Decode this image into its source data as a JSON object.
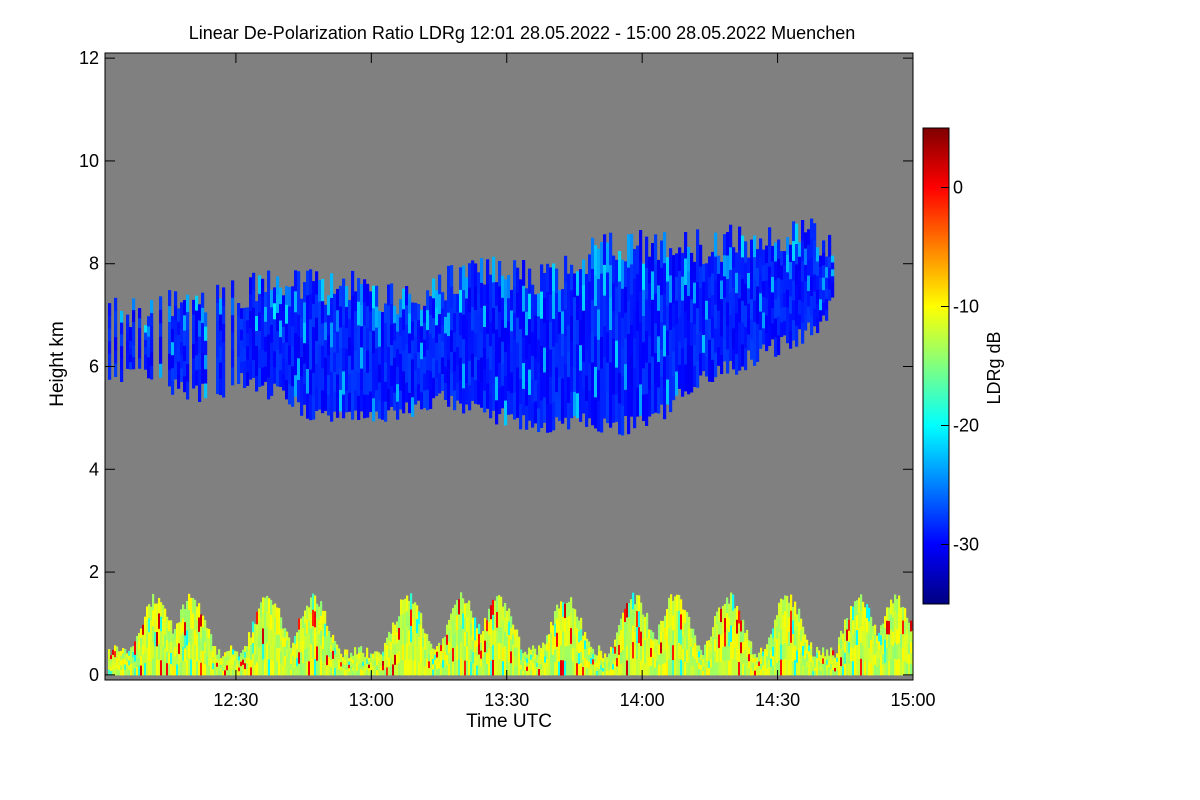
{
  "chart_data": {
    "type": "heatmap",
    "title": "Linear De-Polarization Ratio LDRg   12:01 28.05.2022 - 15:00 28.05.2022 Muenchen",
    "xlabel": "Time UTC",
    "ylabel": "Height km",
    "x_unit": "minutes since 12:00 UTC",
    "xlim": [
      1,
      180
    ],
    "ylim": [
      -0.1,
      12.1
    ],
    "x_ticks": [
      {
        "value": 30,
        "label": "12:30"
      },
      {
        "value": 60,
        "label": "13:00"
      },
      {
        "value": 90,
        "label": "13:30"
      },
      {
        "value": 120,
        "label": "14:00"
      },
      {
        "value": 150,
        "label": "14:30"
      },
      {
        "value": 180,
        "label": "15:00"
      }
    ],
    "y_ticks": [
      {
        "value": 0,
        "label": "0"
      },
      {
        "value": 2,
        "label": "2"
      },
      {
        "value": 4,
        "label": "4"
      },
      {
        "value": 6,
        "label": "6"
      },
      {
        "value": 8,
        "label": "8"
      },
      {
        "value": 10,
        "label": "10"
      },
      {
        "value": 12,
        "label": "12"
      }
    ],
    "background_color": "#808080",
    "colorbar": {
      "label": "LDRg dB",
      "range": [
        -35,
        5
      ],
      "ticks": [
        {
          "value": 0,
          "label": "0"
        },
        {
          "value": -10,
          "label": "-10"
        },
        {
          "value": -20,
          "label": "-20"
        },
        {
          "value": -30,
          "label": "-30"
        }
      ],
      "colormap": [
        "#000080",
        "#0000ff",
        "#0080ff",
        "#00ffff",
        "#80ff80",
        "#ffff00",
        "#ff8000",
        "#ff0000",
        "#800000"
      ]
    },
    "features": [
      {
        "name": "cloud_layer",
        "ldr_db_typical": -29,
        "time_min": [
          1,
          2,
          9,
          12,
          17,
          22,
          26,
          30,
          35,
          40,
          45,
          50,
          55,
          60,
          65,
          70,
          75,
          80,
          85,
          90,
          95,
          100,
          105,
          110,
          115,
          120,
          125,
          130,
          135,
          140,
          145,
          150,
          155,
          160,
          162
        ],
        "base_km": [
          6.0,
          5.8,
          5.8,
          5.7,
          5.6,
          5.5,
          5.3,
          5.7,
          5.6,
          5.5,
          5.2,
          5.0,
          5.0,
          5.0,
          5.1,
          5.2,
          5.4,
          5.3,
          5.1,
          5.0,
          4.9,
          4.9,
          4.9,
          4.9,
          4.85,
          4.9,
          5.2,
          5.6,
          5.9,
          6.0,
          6.2,
          6.4,
          6.6,
          6.9,
          7.3
        ],
        "top_km": [
          7.0,
          6.9,
          6.9,
          7.0,
          7.0,
          7.1,
          7.2,
          7.3,
          7.4,
          7.5,
          7.5,
          7.4,
          7.4,
          7.3,
          7.2,
          7.3,
          7.4,
          7.6,
          7.7,
          7.7,
          7.6,
          7.6,
          7.8,
          8.1,
          8.2,
          8.2,
          8.3,
          8.2,
          8.2,
          8.3,
          8.2,
          8.4,
          8.5,
          8.3,
          8.0
        ]
      },
      {
        "name": "boundary_layer_aerosol",
        "ldr_db_typical": -12,
        "height_range_km": [
          0.0,
          1.5
        ]
      }
    ]
  }
}
